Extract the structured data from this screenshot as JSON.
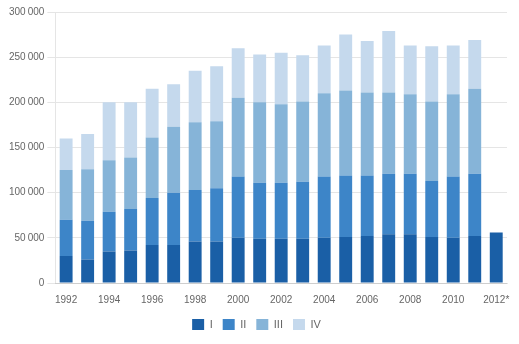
{
  "chart_data": {
    "type": "bar",
    "stacked": true,
    "categories": [
      "1992",
      null,
      "1994",
      null,
      "1996",
      null,
      "1998",
      null,
      "2000",
      null,
      "2002",
      null,
      "2004",
      null,
      "2006",
      null,
      "2008",
      null,
      "2010",
      null,
      "2012*"
    ],
    "series": [
      {
        "name": "I",
        "color": "#1a5fa6",
        "values": [
          30000,
          26000,
          35000,
          36000,
          42000,
          42000,
          46000,
          46000,
          50000,
          49000,
          49000,
          49000,
          50000,
          51000,
          52000,
          54000,
          54000,
          51000,
          50000,
          52000,
          56000
        ]
      },
      {
        "name": "II",
        "color": "#3d85c8",
        "values": [
          40000,
          43000,
          44000,
          46000,
          52000,
          58000,
          57000,
          59000,
          68000,
          62000,
          62000,
          63000,
          68000,
          68000,
          67000,
          67000,
          67000,
          62000,
          68000,
          69000,
          0
        ]
      },
      {
        "name": "III",
        "color": "#86b4d8",
        "values": [
          55000,
          57000,
          57000,
          57000,
          67000,
          73000,
          75000,
          74000,
          87000,
          89000,
          87000,
          89000,
          92000,
          94000,
          92000,
          90000,
          88000,
          88000,
          91000,
          94000,
          0
        ]
      },
      {
        "name": "IV",
        "color": "#c5d9ed",
        "values": [
          35000,
          39000,
          64000,
          61000,
          54000,
          47000,
          57000,
          61000,
          55000,
          53000,
          57000,
          51000,
          53000,
          62000,
          57000,
          68000,
          54000,
          61000,
          54000,
          54000,
          0
        ]
      }
    ],
    "ylim": [
      0,
      300000
    ],
    "yticks": [
      0,
      {
        "value": 50000,
        "label": "50 000"
      },
      {
        "value": 100000,
        "label": "100 000"
      },
      {
        "value": 150000,
        "label": "150 000"
      },
      {
        "value": 200000,
        "label": "200 000"
      },
      {
        "value": 250000,
        "label": "250 000"
      },
      {
        "value": 300000,
        "label": "300 000"
      }
    ],
    "grid": true,
    "legend": "bottom"
  }
}
